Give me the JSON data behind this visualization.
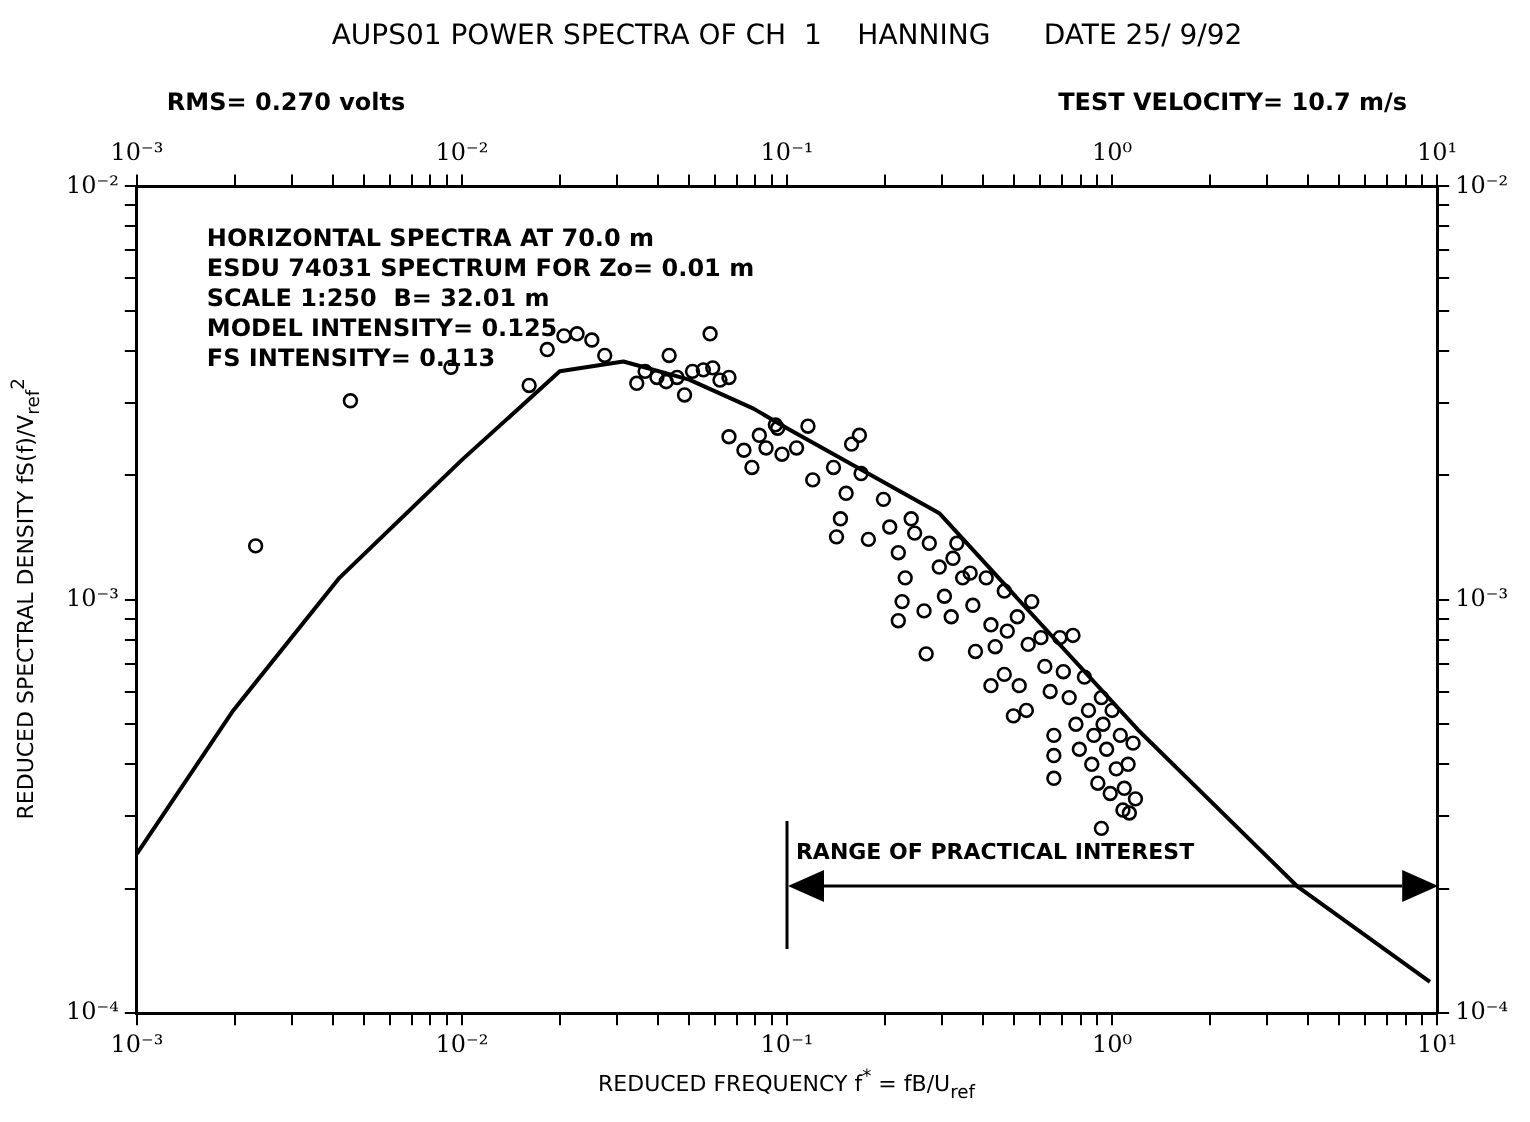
{
  "chart_data": {
    "type": "scatter",
    "title": "AUPS01 POWER SPECTRA OF CH  1    HANNING      DATE 25/ 9/92",
    "xlabel": "REDUCED FREQUENCY f$^{*}$ = fB/U$_{ref}$",
    "ylabel": "REDUCED SPECTRAL DENSITY fS(f)/V$_{ref}$$^{2}$",
    "annotations": [
      "RMS= 0.270 volts",
      "TEST VELOCITY= 10.7 m/s",
      "HORIZONTAL SPECTRA AT 70.0 m",
      "ESDU 74031 SPECTRUM FOR Zo= 0.01 m",
      "SCALE 1:250  B= 32.01 m",
      "MODEL INTENSITY= 0.125",
      "FS INTENSITY= 0.113",
      "RANGE OF PRACTICAL INTEREST"
    ],
    "ref_lines": [
      {
        "axis": "x",
        "value": 0.1,
        "color": "#000000"
      }
    ],
    "log": "xy",
    "grid": false,
    "legend": false,
    "xlim": [
      0.001,
      10
    ],
    "ylim": [
      0.0001,
      0.01
    ],
    "xticks": [
      {
        "value": 0.001,
        "label": "10⁻³"
      },
      {
        "value": 0.002,
        "label": null
      },
      {
        "value": 0.003,
        "label": null
      },
      {
        "value": 0.004,
        "label": null
      },
      {
        "value": 0.005,
        "label": null
      },
      {
        "value": 0.006,
        "label": null
      },
      {
        "value": 0.007,
        "label": null
      },
      {
        "value": 0.008,
        "label": null
      },
      {
        "value": 0.009,
        "label": null
      },
      {
        "value": 0.01,
        "label": "10⁻²"
      },
      {
        "value": 0.02,
        "label": null
      },
      {
        "value": 0.03,
        "label": null
      },
      {
        "value": 0.04,
        "label": null
      },
      {
        "value": 0.05,
        "label": null
      },
      {
        "value": 0.06,
        "label": null
      },
      {
        "value": 0.07,
        "label": null
      },
      {
        "value": 0.08,
        "label": null
      },
      {
        "value": 0.09,
        "label": null
      },
      {
        "value": 0.1,
        "label": "10⁻¹"
      },
      {
        "value": 0.2,
        "label": null
      },
      {
        "value": 0.3,
        "label": null
      },
      {
        "value": 0.4,
        "label": null
      },
      {
        "value": 0.5,
        "label": null
      },
      {
        "value": 0.6,
        "label": null
      },
      {
        "value": 0.7,
        "label": null
      },
      {
        "value": 0.8,
        "label": null
      },
      {
        "value": 0.9,
        "label": null
      },
      {
        "value": 1,
        "label": "10⁰"
      },
      {
        "value": 2,
        "label": null
      },
      {
        "value": 3,
        "label": null
      },
      {
        "value": 4,
        "label": null
      },
      {
        "value": 5,
        "label": null
      },
      {
        "value": 6,
        "label": null
      },
      {
        "value": 7,
        "label": null
      },
      {
        "value": 8,
        "label": null
      },
      {
        "value": 9,
        "label": null
      },
      {
        "value": 10,
        "label": "10¹"
      }
    ],
    "yticks": [
      {
        "value": 0.0001,
        "label": "10⁻⁴"
      },
      {
        "value": 0.0002,
        "label": null
      },
      {
        "value": 0.0003,
        "label": null
      },
      {
        "value": 0.0004,
        "label": null
      },
      {
        "value": 0.0005,
        "label": null
      },
      {
        "value": 0.0006,
        "label": null
      },
      {
        "value": 0.0007,
        "label": null
      },
      {
        "value": 0.0008,
        "label": null
      },
      {
        "value": 0.0009,
        "label": null
      },
      {
        "value": 0.001,
        "label": "10⁻³"
      },
      {
        "value": 0.002,
        "label": null
      },
      {
        "value": 0.003,
        "label": null
      },
      {
        "value": 0.004,
        "label": null
      },
      {
        "value": 0.005,
        "label": null
      },
      {
        "value": 0.006,
        "label": null
      },
      {
        "value": 0.007,
        "label": null
      },
      {
        "value": 0.008,
        "label": null
      },
      {
        "value": 0.009,
        "label": null
      },
      {
        "value": 0.01,
        "label": "10⁻²"
      }
    ],
    "series": [
      {
        "type": "scatter",
        "color": "#000000",
        "marker": "circle",
        "x": [
          0.00232,
          0.00454,
          0.00925,
          0.0161,
          0.0183,
          0.0206,
          0.0226,
          0.0251,
          0.0275,
          0.0345,
          0.0366,
          0.0398,
          0.0425,
          0.0434,
          0.0459,
          0.0484,
          0.0512,
          0.0553,
          0.058,
          0.0591,
          0.0622,
          0.0663,
          0.0663,
          0.0737,
          0.078,
          0.0822,
          0.0862,
          0.0921,
          0.0936,
          0.0965,
          0.107,
          0.116,
          0.12,
          0.139,
          0.158,
          0.167,
          0.146,
          0.142,
          0.152,
          0.169,
          0.178,
          0.198,
          0.207,
          0.22,
          0.231,
          0.241,
          0.247,
          0.226,
          0.22,
          0.264,
          0.268,
          0.274,
          0.294,
          0.305,
          0.32,
          0.324,
          0.333,
          0.347,
          0.366,
          0.373,
          0.41,
          0.38,
          0.424,
          0.437,
          0.466,
          0.476,
          0.424,
          0.466,
          0.497,
          0.518,
          0.545,
          0.511,
          0.552,
          0.566,
          0.604,
          0.621,
          0.645,
          0.662,
          0.662,
          0.662,
          0.691,
          0.708,
          0.738,
          0.758,
          0.774,
          0.793,
          0.822,
          0.846,
          0.866,
          0.879,
          0.904,
          0.927,
          0.938,
          0.962,
          0.987,
          1.0,
          1.03,
          1.06,
          1.08,
          1.09,
          1.12,
          1.13,
          1.16,
          1.18,
          0.927
        ],
        "values": [
          0.00135,
          0.00303,
          0.00365,
          0.0033,
          0.00403,
          0.00435,
          0.0044,
          0.00425,
          0.0039,
          0.00334,
          0.00357,
          0.00345,
          0.00337,
          0.0039,
          0.00345,
          0.00313,
          0.00357,
          0.0036,
          0.0044,
          0.00364,
          0.0034,
          0.00345,
          0.00248,
          0.0023,
          0.00209,
          0.0025,
          0.00233,
          0.00265,
          0.0026,
          0.00225,
          0.00233,
          0.00263,
          0.00195,
          0.00209,
          0.00238,
          0.0025,
          0.00157,
          0.00142,
          0.00181,
          0.00202,
          0.0014,
          0.00175,
          0.0015,
          0.0013,
          0.00113,
          0.00157,
          0.00145,
          0.00099,
          0.00089,
          0.00094,
          0.00074,
          0.00137,
          0.0012,
          0.00102,
          0.00091,
          0.00126,
          0.00137,
          0.00113,
          0.00116,
          0.00097,
          0.00113,
          0.00075,
          0.00087,
          0.00077,
          0.00105,
          0.00084,
          0.00062,
          0.00066,
          0.000524,
          0.00062,
          0.00054,
          0.00091,
          0.00078,
          0.00099,
          0.00081,
          0.00069,
          0.0006,
          0.00047,
          0.00042,
          0.00037,
          0.00081,
          0.00067,
          0.00058,
          0.00082,
          0.0005,
          0.000435,
          0.00065,
          0.00054,
          0.0004,
          0.00047,
          0.00036,
          0.00058,
          0.0005,
          0.000435,
          0.00034,
          0.00054,
          0.00039,
          0.00047,
          0.00031,
          0.00035,
          0.0004,
          0.000305,
          0.00045,
          0.00033,
          0.00028
        ]
      },
      {
        "type": "line",
        "color": "#000000",
        "marker": "none",
        "line_style": "solid",
        "x": [
          0.001,
          0.00198,
          0.0042,
          0.01,
          0.02,
          0.0314,
          0.05,
          0.0789,
          0.1,
          0.294,
          1.2,
          3.73,
          9.5
        ],
        "values": [
          0.000243,
          0.00054,
          0.00113,
          0.00218,
          0.00357,
          0.00377,
          0.00341,
          0.0029,
          0.0026,
          0.00162,
          0.000485,
          0.000202,
          0.000119
        ]
      }
    ]
  }
}
